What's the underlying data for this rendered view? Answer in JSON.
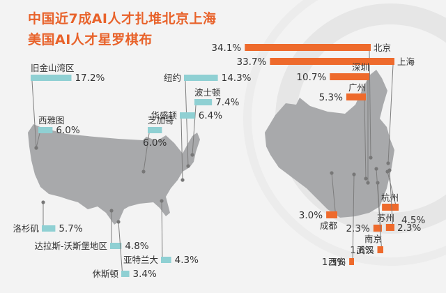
{
  "header": {
    "title_line1": "中国近7成AI人才扎堆北京上海",
    "title_line2": "美国AI人才星罗棋布"
  },
  "colors": {
    "title": "#e8622a",
    "us_bar": "#8fd0d3",
    "cn_bar": "#ee6a2c",
    "map_fill": "#a8a9ab",
    "dot": "#777777"
  },
  "chart_data": [
    {
      "type": "bar",
      "region": "美国",
      "categories": [
        "旧金山湾区",
        "纽约",
        "波士顿",
        "华盛顿",
        "西雅图",
        "芝加哥",
        "洛杉矶",
        "达拉斯-沃斯堡地区",
        "亚特兰大",
        "休斯顿"
      ],
      "values": [
        17.2,
        14.3,
        7.4,
        6.4,
        6.0,
        6.0,
        5.7,
        4.8,
        4.3,
        3.4
      ],
      "labels": [
        "17.2%",
        "14.3%",
        "7.4%",
        "6.4%",
        "6.0%",
        "6.0%",
        "5.7%",
        "4.8%",
        "4.3%",
        "3.4%"
      ],
      "unit": "%"
    },
    {
      "type": "bar",
      "region": "中国",
      "categories": [
        "北京",
        "上海",
        "深圳",
        "广州",
        "杭州",
        "成都",
        "南京",
        "苏州",
        "武汉",
        "西安"
      ],
      "values": [
        34.1,
        33.7,
        10.7,
        5.3,
        4.5,
        3.0,
        2.3,
        2.3,
        1.6,
        1.3
      ],
      "labels": [
        "34.1%",
        "33.7%",
        "10.7%",
        "5.3%",
        "4.5%",
        "3.0%",
        "2.3%",
        "2.3%",
        "1.6%",
        "1.3%"
      ],
      "unit": "%"
    }
  ]
}
